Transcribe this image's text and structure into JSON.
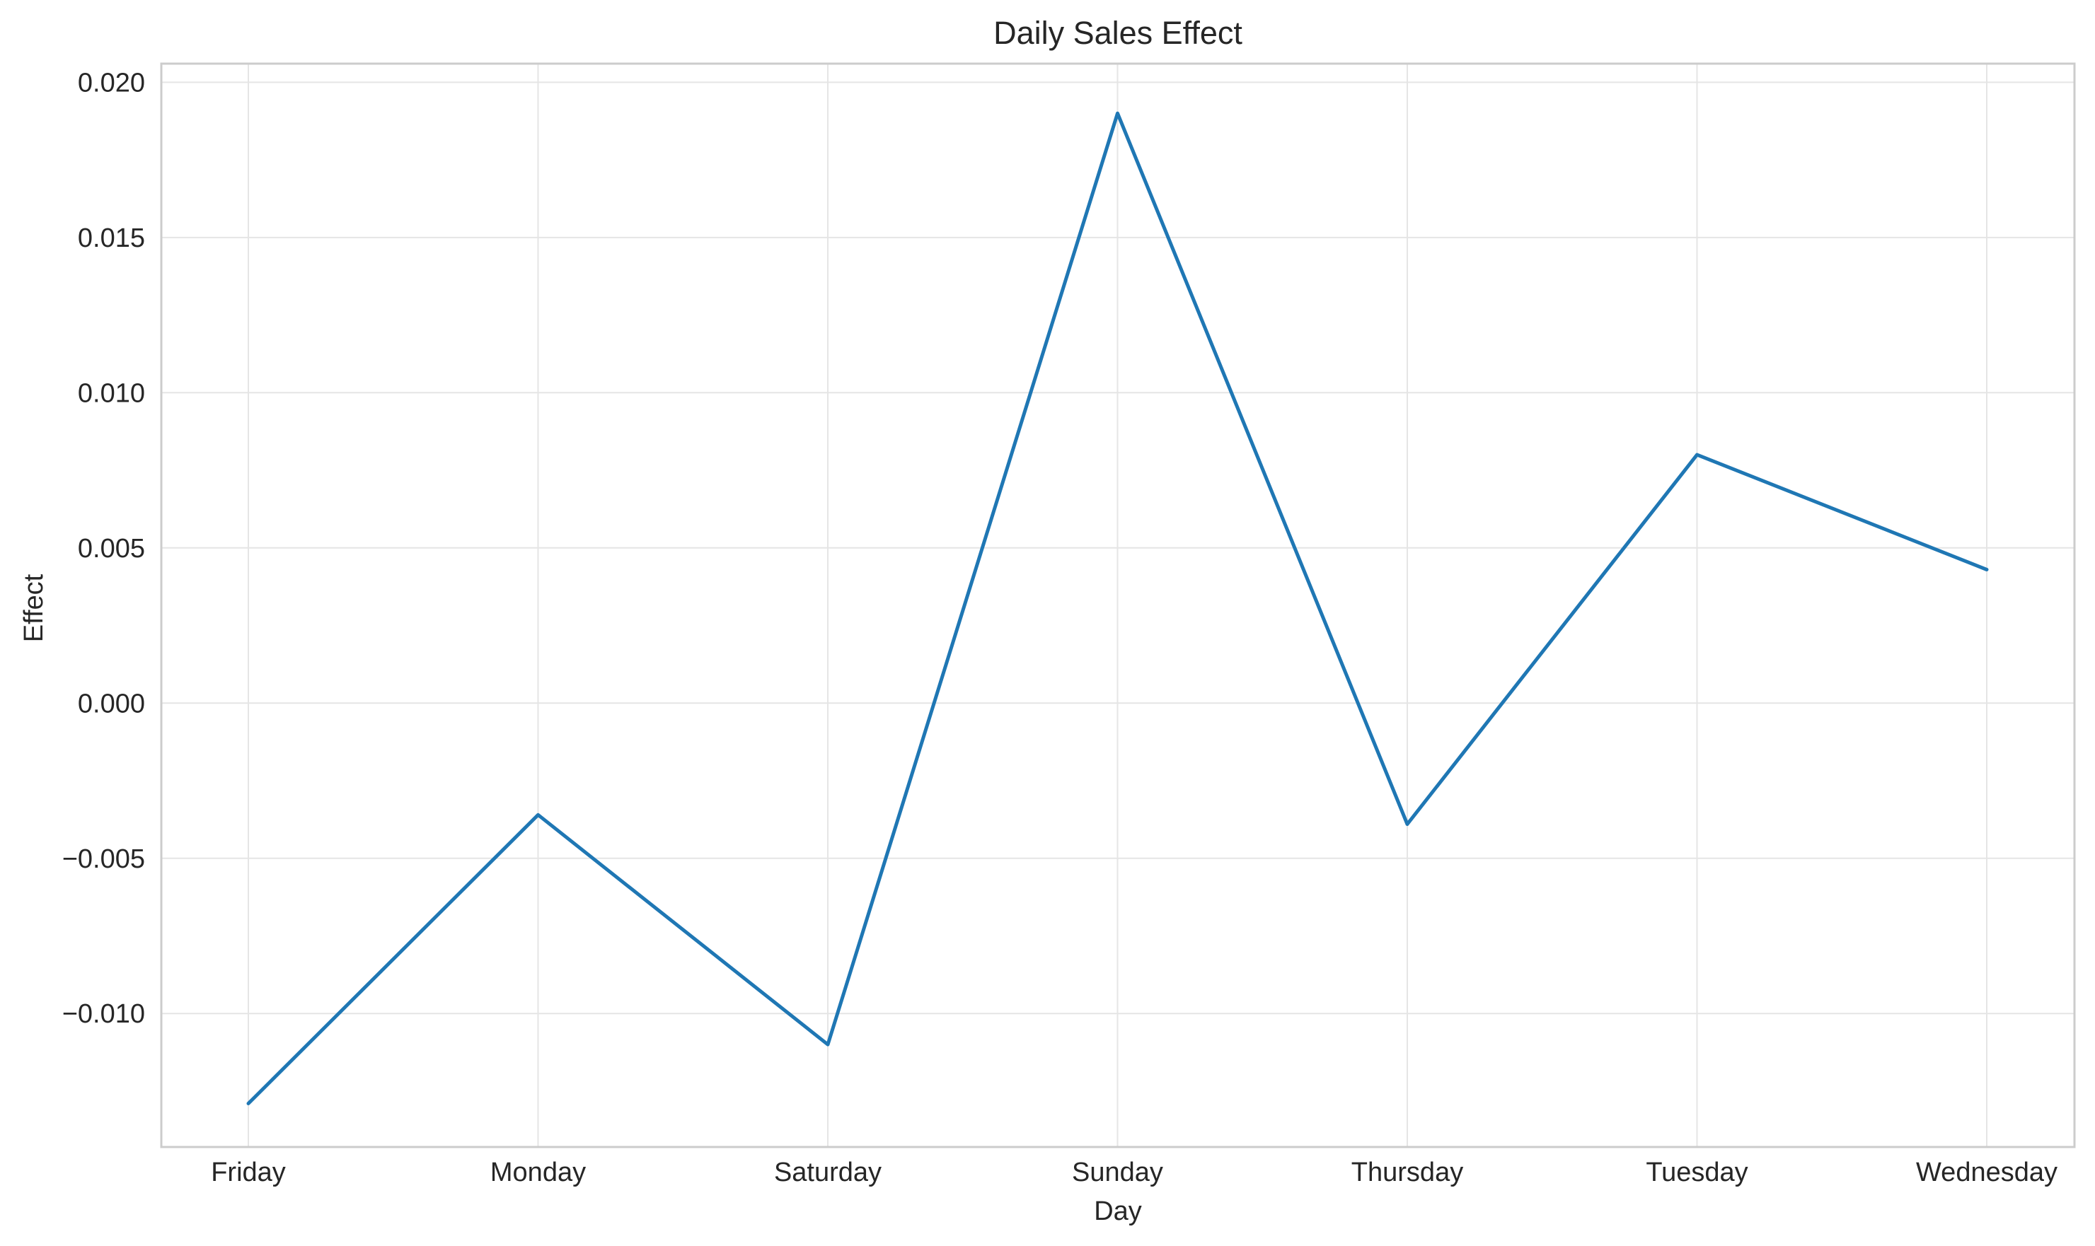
{
  "chart_data": {
    "type": "line",
    "title": "Daily Sales Effect",
    "xlabel": "Day",
    "ylabel": "Effect",
    "categories": [
      "Friday",
      "Monday",
      "Saturday",
      "Sunday",
      "Thursday",
      "Tuesday",
      "Wednesday"
    ],
    "series": [
      {
        "values": [
          -0.0129,
          -0.0036,
          -0.011,
          0.019,
          -0.0039,
          0.008,
          0.0043
        ],
        "color": "#1f77b4"
      }
    ],
    "ylim": [
      -0.0143,
      0.0206
    ],
    "yticks": [
      -0.01,
      -0.005,
      0.0,
      0.005,
      0.01,
      0.015,
      0.02
    ],
    "ytick_labels": [
      "−0.010",
      "−0.005",
      "0.000",
      "0.005",
      "0.010",
      "0.015",
      "0.020"
    ],
    "grid": true,
    "legend": "none"
  }
}
